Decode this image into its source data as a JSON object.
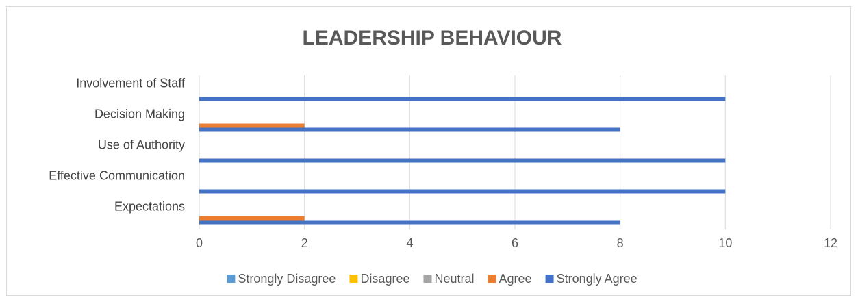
{
  "chart_data": {
    "type": "hbar",
    "title": "LEADERSHIP BEHAVIOUR",
    "categories": [
      "Expectations",
      "Effective Communication",
      "Use of Authority",
      "Decision Making",
      "Involvement of Staff"
    ],
    "series": [
      {
        "name": "Strongly Disagree",
        "color": "#5b9bd5",
        "values": [
          0,
          0,
          0,
          0,
          0
        ]
      },
      {
        "name": "Disagree",
        "color": "#ffc000",
        "values": [
          0,
          0,
          0,
          0,
          0
        ]
      },
      {
        "name": "Neutral",
        "color": "#a5a5a5",
        "values": [
          0,
          0,
          0,
          0,
          0
        ]
      },
      {
        "name": "Agree",
        "color": "#ed7d31",
        "values": [
          2,
          0,
          0,
          2,
          0
        ]
      },
      {
        "name": "Strongly Agree",
        "color": "#4472c4",
        "values": [
          8,
          10,
          10,
          8,
          10
        ]
      }
    ],
    "xlim": [
      0,
      12
    ],
    "xticks": [
      0,
      2,
      4,
      6,
      8,
      10,
      12
    ],
    "grid": true,
    "legend": "bottom"
  }
}
